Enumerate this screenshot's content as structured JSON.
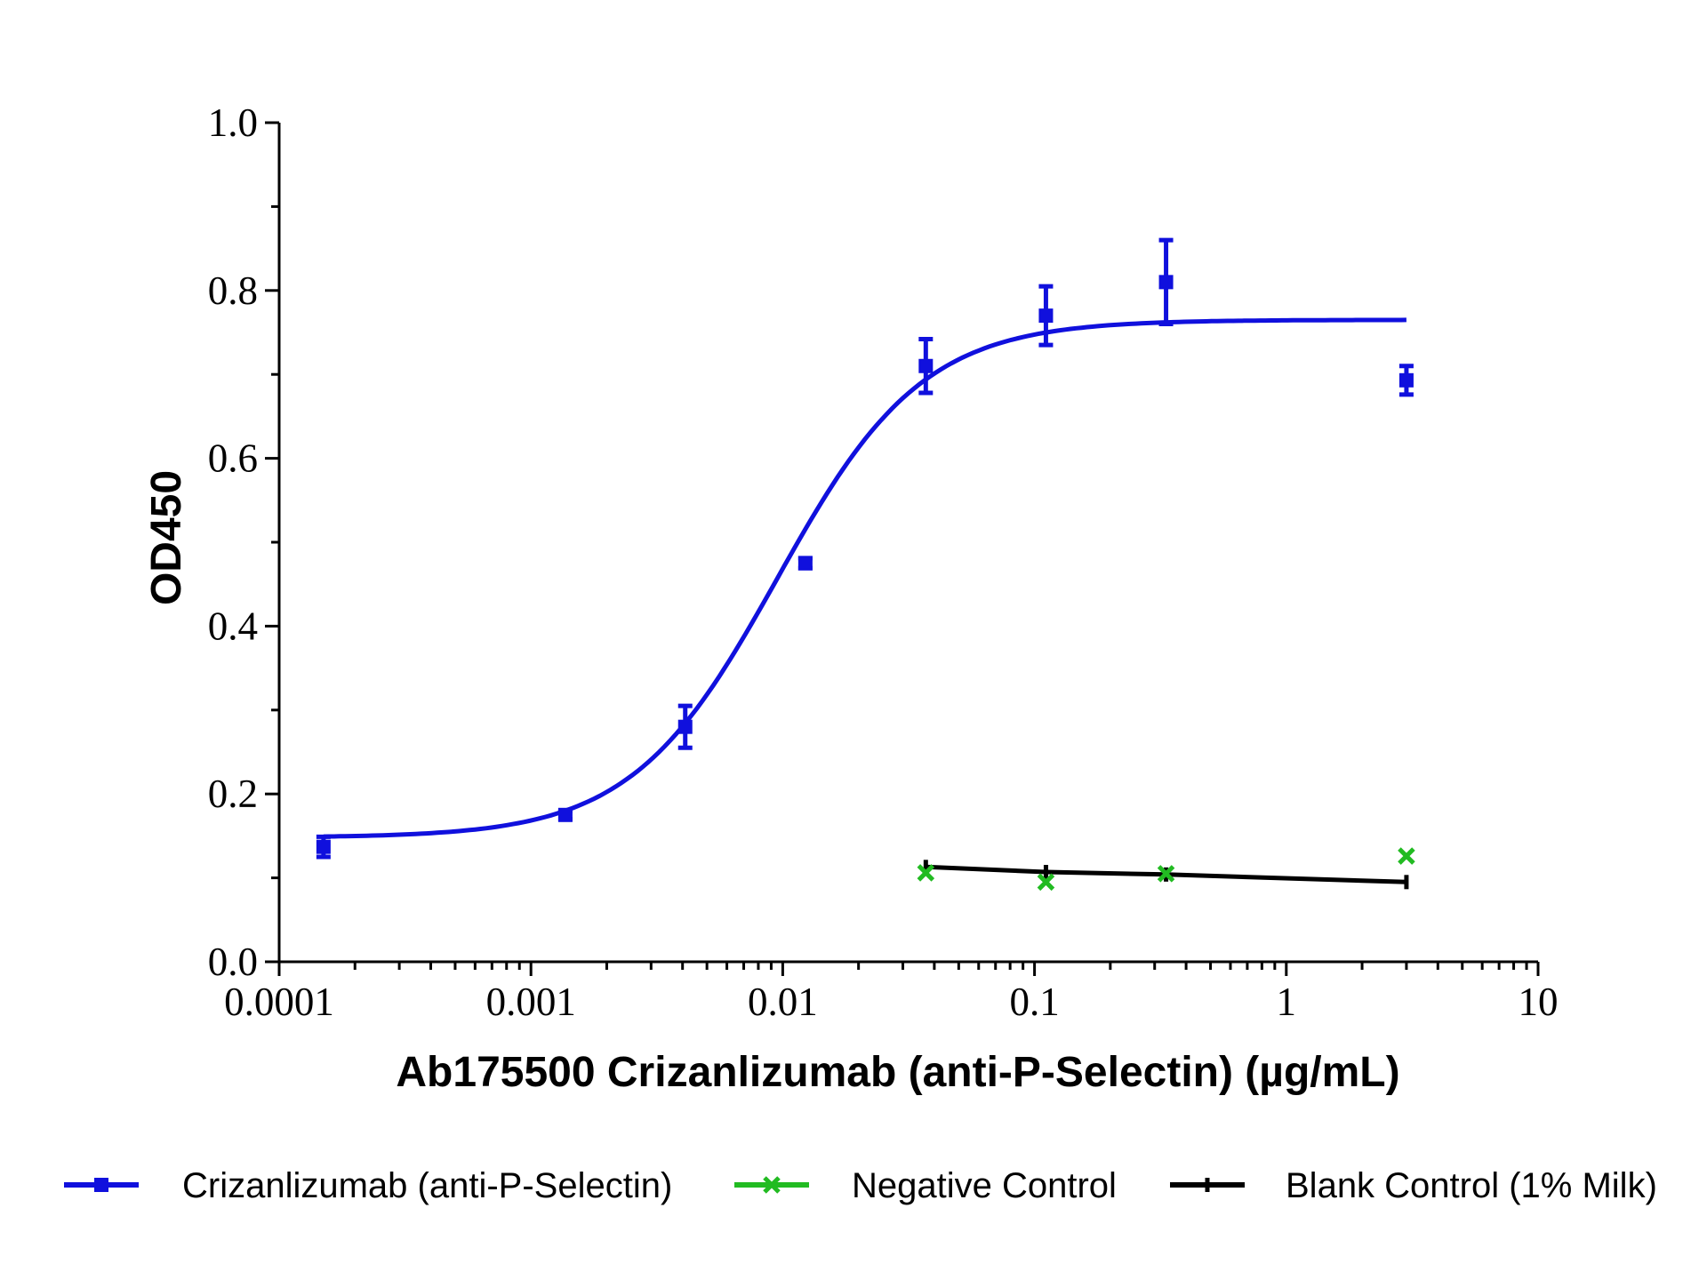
{
  "chart_data": {
    "type": "scatter",
    "xlabel": "Ab175500 Crizanlizumab (anti-P-Selectin) (µg/mL)",
    "ylabel": "OD450",
    "x_scale": "log",
    "xlim": [
      0.0001,
      10
    ],
    "ylim": [
      0.0,
      1.0
    ],
    "x_ticks": [
      {
        "value": 0.0001,
        "label": "0.0001"
      },
      {
        "value": 0.001,
        "label": "0.001"
      },
      {
        "value": 0.01,
        "label": "0.01"
      },
      {
        "value": 0.1,
        "label": "0.1"
      },
      {
        "value": 1,
        "label": "1"
      },
      {
        "value": 10,
        "label": "10"
      }
    ],
    "y_ticks": [
      {
        "value": 0.0,
        "label": "0.0"
      },
      {
        "value": 0.2,
        "label": "0.2"
      },
      {
        "value": 0.4,
        "label": "0.4"
      },
      {
        "value": 0.6,
        "label": "0.6"
      },
      {
        "value": 0.8,
        "label": "0.8"
      },
      {
        "value": 1.0,
        "label": "1.0"
      }
    ],
    "grid": false,
    "legend_position": "bottom",
    "series": [
      {
        "name": "Crizanlizumab (anti-P-Selectin)",
        "color": "#1010dd",
        "marker": "square",
        "points": [
          {
            "x": 0.00015,
            "y": 0.137,
            "err": 0.012
          },
          {
            "x": 0.00137,
            "y": 0.175,
            "err": 0.005
          },
          {
            "x": 0.0041,
            "y": 0.28,
            "err": 0.025
          },
          {
            "x": 0.0123,
            "y": 0.475,
            "err": 0.006
          },
          {
            "x": 0.037,
            "y": 0.71,
            "err": 0.032
          },
          {
            "x": 0.111,
            "y": 0.77,
            "err": 0.035
          },
          {
            "x": 0.333,
            "y": 0.81,
            "err": 0.05
          },
          {
            "x": 3.0,
            "y": 0.693,
            "err": 0.017
          }
        ],
        "fit": {
          "model": "4PL",
          "bottom": 0.148,
          "top": 0.765,
          "ec50": 0.0095,
          "hill": 1.5,
          "x_range": [
            0.00015,
            3.0
          ]
        }
      },
      {
        "name": "Negative Control",
        "color": "#22bb22",
        "marker": "x",
        "points": [
          {
            "x": 0.037,
            "y": 0.106
          },
          {
            "x": 0.111,
            "y": 0.095
          },
          {
            "x": 0.333,
            "y": 0.105
          },
          {
            "x": 3.0,
            "y": 0.126
          }
        ]
      },
      {
        "name": "Blank Control (1% Milk)",
        "color": "#000000",
        "marker": "dash",
        "points": [
          {
            "x": 0.037,
            "y": 0.113
          },
          {
            "x": 0.111,
            "y": 0.107
          },
          {
            "x": 0.333,
            "y": 0.104
          },
          {
            "x": 3.0,
            "y": 0.095
          }
        ],
        "line": true
      }
    ]
  }
}
